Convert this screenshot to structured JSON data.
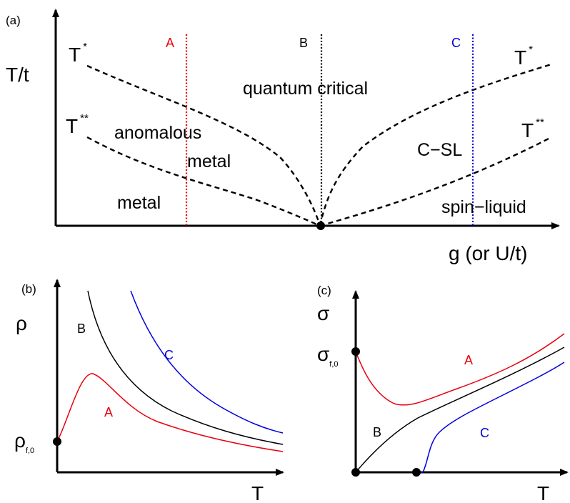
{
  "panel_a": {
    "tag": "(a)",
    "y_axis": "T/t",
    "x_axis": "g (or U/t)",
    "t_star": {
      "base": "T",
      "sup": "*"
    },
    "t_2star": {
      "base": "T",
      "sup": "**"
    },
    "regions": {
      "quantum_critical": "quantum critical",
      "anomalous": "anomalous",
      "anomalous_metal": "metal",
      "metal": "metal",
      "csl": "C−SL",
      "spin_liquid": "spin−liquid"
    },
    "cuts": [
      {
        "label": "A",
        "color": "#e8000b"
      },
      {
        "label": "B",
        "color": "#000000"
      },
      {
        "label": "C",
        "color": "#0000dd"
      }
    ]
  },
  "panel_b": {
    "tag": "(b)",
    "y_axis": "ρ",
    "x_axis": "T",
    "marker": {
      "base": "ρ",
      "sub": "f,0"
    },
    "curves": [
      {
        "label": "A",
        "color": "#e8000b"
      },
      {
        "label": "B",
        "color": "#000000"
      },
      {
        "label": "C",
        "color": "#0000dd"
      }
    ]
  },
  "panel_c": {
    "tag": "(c)",
    "y_axis": "σ",
    "x_axis": "T",
    "marker": {
      "base": "σ",
      "sub": "f,0"
    },
    "curves": [
      {
        "label": "A",
        "color": "#e8000b"
      },
      {
        "label": "B",
        "color": "#000000"
      },
      {
        "label": "C",
        "color": "#0000dd"
      }
    ]
  }
}
